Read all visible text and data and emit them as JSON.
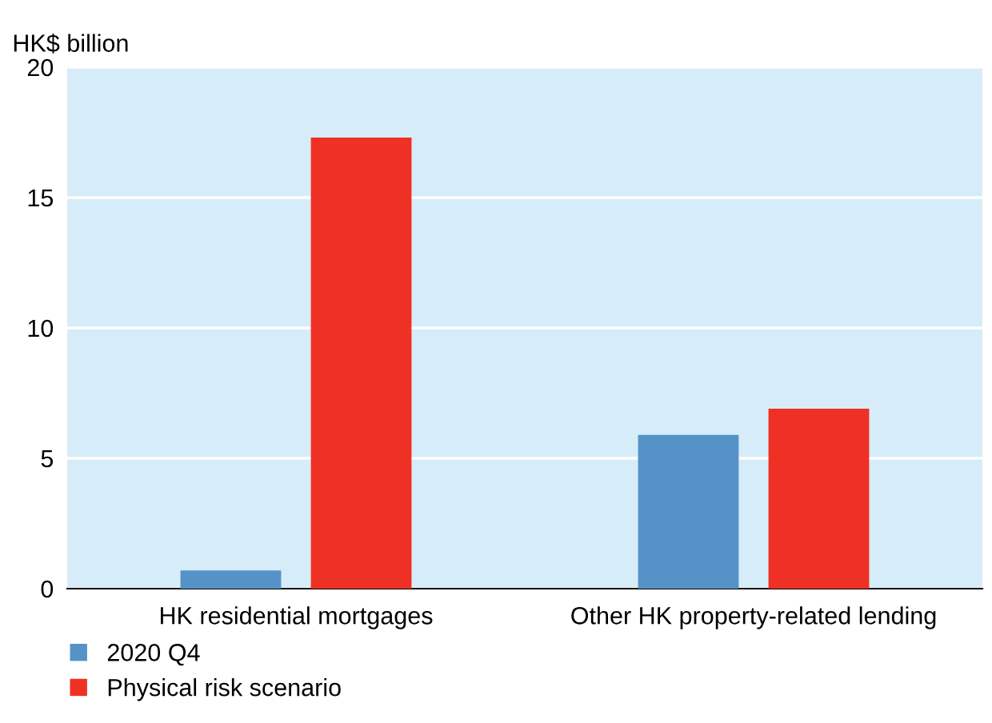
{
  "chart_data": {
    "type": "bar",
    "ylabel": "HK$ billion",
    "categories": [
      "HK residential mortgages",
      "Other HK property-related lending"
    ],
    "series": [
      {
        "name": "2020 Q4",
        "color": "#5592c8",
        "values": [
          0.7,
          5.9
        ]
      },
      {
        "name": "Physical risk scenario",
        "color": "#ee3124",
        "values": [
          17.3,
          6.9
        ]
      }
    ],
    "ylim": [
      0,
      20
    ],
    "yticks": [
      0,
      5,
      10,
      15,
      20
    ],
    "grid": "y",
    "legend": "bottom left"
  }
}
